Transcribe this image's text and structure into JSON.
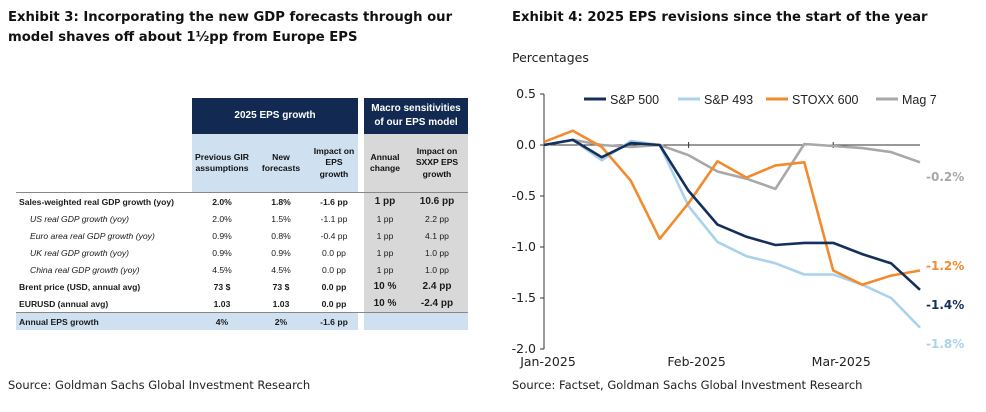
{
  "exhibit3": {
    "title": "Exhibit 3: Incorporating the new GDP forecasts through our model shaves off about 1½pp from Europe EPS",
    "source": "Source: Goldman Sachs Global Investment Research",
    "table": {
      "group_eps": "2025 EPS growth",
      "group_macro": "Macro sensitivities of our EPS model",
      "columns": [
        "Previous GIR assumptions",
        "New forecasts",
        "Impact on EPS growth",
        "Annual change",
        "Impact on SXXP EPS growth"
      ],
      "rows": [
        {
          "label": "Sales-weighted real GDP growth (yoy)",
          "style": "bold",
          "values": [
            "2.0%",
            "1.8%",
            "-1.6 pp",
            "1 pp",
            "10.6 pp"
          ]
        },
        {
          "label": "US real GDP growth (yoy)",
          "style": "italic",
          "values": [
            "2.0%",
            "1.5%",
            "-1.1 pp",
            "1 pp",
            "2.2 pp"
          ]
        },
        {
          "label": "Euro area real GDP growth (yoy)",
          "style": "italic",
          "values": [
            "0.9%",
            "0.8%",
            "-0.4 pp",
            "1 pp",
            "4.1 pp"
          ]
        },
        {
          "label": "UK real GDP growth (yoy)",
          "style": "italic",
          "values": [
            "0.9%",
            "0.9%",
            "0.0 pp",
            "1 pp",
            "1.0 pp"
          ]
        },
        {
          "label": "China real GDP growth (yoy)",
          "style": "italic",
          "values": [
            "4.5%",
            "4.5%",
            "0.0 pp",
            "1 pp",
            "1.0 pp"
          ]
        },
        {
          "label": "Brent price (USD, annual avg)",
          "style": "bold",
          "values": [
            "73 $",
            "73 $",
            "0.0 pp",
            "10 %",
            "2.4 pp"
          ]
        },
        {
          "label": "EURUSD (annual avg)",
          "style": "bold",
          "values": [
            "1.03",
            "1.03",
            "0.0 pp",
            "10 %",
            "-2.4 pp"
          ]
        },
        {
          "label": "Annual EPS growth",
          "style": "total",
          "values": [
            "4%",
            "2%",
            "-1.6 pp",
            "",
            ""
          ]
        }
      ]
    }
  },
  "exhibit4": {
    "title": "Exhibit 4: 2025 EPS revisions since the start of the year",
    "source": "Source: Factset, Goldman Sachs Global Investment Research",
    "ylabel": "Percentages",
    "chart_data": {
      "type": "line",
      "x_ticks": [
        "Jan-2025",
        "Feb-2025",
        "Mar-2025"
      ],
      "ylim": [
        -2.0,
        0.5
      ],
      "y_ticks": [
        "0.5",
        "0.0",
        "-0.5",
        "-1.0",
        "-1.5",
        "-2.0"
      ],
      "legend_position": "top",
      "grid": false,
      "series": [
        {
          "name": "S&P 500",
          "color": "#14305a",
          "values": [
            0.0,
            0.05,
            -0.12,
            0.02,
            0.0,
            -0.45,
            -0.78,
            -0.9,
            -0.98,
            -0.96,
            -0.96,
            -1.07,
            -1.16,
            -1.42
          ],
          "end_label": "-1.4%"
        },
        {
          "name": "S&P 493",
          "color": "#a9d2ec",
          "values": [
            0.0,
            0.05,
            -0.15,
            0.04,
            0.0,
            -0.6,
            -0.95,
            -1.09,
            -1.16,
            -1.27,
            -1.27,
            -1.37,
            -1.5,
            -1.79
          ],
          "end_label": "-1.8%"
        },
        {
          "name": "STOXX 600",
          "color": "#f28a2e",
          "values": [
            0.03,
            0.14,
            -0.02,
            -0.35,
            -0.92,
            -0.57,
            -0.16,
            -0.32,
            -0.2,
            -0.17,
            -1.23,
            -1.37,
            -1.28,
            -1.23
          ],
          "end_label": "-1.2%"
        },
        {
          "name": "Mag 7",
          "color": "#a8a8a8",
          "values": [
            0.0,
            0.05,
            0.0,
            -0.02,
            0.0,
            -0.1,
            -0.26,
            -0.33,
            -0.43,
            0.01,
            -0.01,
            -0.03,
            -0.07,
            -0.17
          ],
          "end_label": "-0.2%"
        }
      ]
    }
  }
}
